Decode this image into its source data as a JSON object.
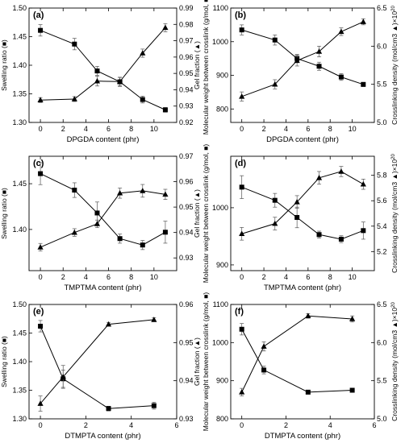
{
  "chart_data": [
    {
      "panel": "(a)",
      "type": "line",
      "x": [
        0,
        3,
        5,
        7,
        9,
        11
      ],
      "xlim": [
        -1,
        12
      ],
      "xticks": [
        0,
        2,
        4,
        6,
        8,
        10
      ],
      "xlabel": "DPGDA content (phr)",
      "left": {
        "label": "Swelling ratio (■)",
        "lim": [
          1.3,
          1.5
        ],
        "ticks": [
          "1.30",
          "1.35",
          "1.40",
          "1.45",
          "1.50"
        ],
        "tickvals": [
          1.3,
          1.35,
          1.4,
          1.45,
          1.5
        ]
      },
      "right": {
        "label": "Gel fraction (▲)",
        "lim": [
          0.92,
          0.99
        ],
        "ticks": [
          "0.92",
          "0.93",
          "0.94",
          "0.95",
          "0.96",
          "0.97",
          "0.98",
          "0.99"
        ],
        "tickvals": [
          0.92,
          0.93,
          0.94,
          0.95,
          0.96,
          0.97,
          0.98,
          0.99
        ]
      },
      "series": [
        {
          "axis": "left",
          "marker": "square",
          "values": [
            1.461,
            1.437,
            1.39,
            1.371,
            1.34,
            1.322
          ],
          "err": [
            0.01,
            0.01,
            0.008,
            0.008,
            0.006,
            0.004
          ]
        },
        {
          "axis": "right",
          "marker": "triangle",
          "values": [
            0.9337,
            0.9343,
            0.9453,
            0.945,
            0.9624,
            0.978
          ],
          "err": [
            0.0015,
            0.0015,
            0.003,
            0.0025,
            0.0025,
            0.0025
          ]
        }
      ]
    },
    {
      "panel": "(b)",
      "type": "line",
      "x": [
        0,
        3,
        5,
        7,
        9,
        11
      ],
      "xlim": [
        -1,
        12
      ],
      "xticks": [
        0,
        2,
        4,
        6,
        8,
        10
      ],
      "xlabel": "DPGDA content (phr)",
      "left": {
        "label": "Molecular weight between crosslink (g/mol, ■)",
        "lim": [
          760,
          1100
        ],
        "ticks": [
          "800",
          "900",
          "1000",
          "1100"
        ],
        "tickvals": [
          800,
          900,
          1000,
          1100
        ]
      },
      "right": {
        "label": "Crosslinking density (mol/cm3 ▲)×10",
        "exp": "20",
        "lim": [
          5.0,
          6.5
        ],
        "ticks": [
          "5.0",
          "5.5",
          "6.0",
          "6.5"
        ],
        "tickvals": [
          5.0,
          5.5,
          6.0,
          6.5
        ]
      },
      "series": [
        {
          "axis": "left",
          "marker": "square",
          "values": [
            1035,
            1005,
            950,
            927,
            895,
            873
          ],
          "err": [
            15,
            15,
            12,
            12,
            10,
            6
          ]
        },
        {
          "axis": "right",
          "marker": "triangle",
          "values": [
            5.34,
            5.5,
            5.81,
            5.93,
            6.19,
            6.32
          ],
          "err": [
            0.06,
            0.06,
            0.07,
            0.07,
            0.05,
            0.04
          ]
        }
      ]
    },
    {
      "panel": "(c)",
      "type": "line",
      "x": [
        0,
        3,
        5,
        7,
        9,
        11
      ],
      "xlim": [
        -1,
        12
      ],
      "xticks": [
        0,
        2,
        4,
        6,
        8,
        10
      ],
      "xlabel": "TMPTMA content (phr)",
      "left": {
        "label": "Swelling ratio (■)",
        "lim": [
          1.355,
          1.48
        ],
        "ticks": [
          "1.40",
          "1.45"
        ],
        "tickvals": [
          1.4,
          1.45
        ]
      },
      "right": {
        "label": "Gel fraction (▲)",
        "lim": [
          0.925,
          0.97
        ],
        "ticks": [
          "0.93",
          "0.94",
          "0.95",
          "0.96",
          "0.97"
        ],
        "tickvals": [
          0.93,
          0.94,
          0.95,
          0.96,
          0.97
        ]
      },
      "series": [
        {
          "axis": "left",
          "marker": "square",
          "values": [
            1.461,
            1.443,
            1.418,
            1.39,
            1.383,
            1.397
          ],
          "err": [
            0.012,
            0.008,
            0.012,
            0.005,
            0.005,
            0.012
          ]
        },
        {
          "axis": "right",
          "marker": "triangle",
          "values": [
            0.9342,
            0.94,
            0.9434,
            0.9555,
            0.9564,
            0.955
          ],
          "err": [
            0.0015,
            0.0015,
            0.0015,
            0.002,
            0.0025,
            0.002
          ]
        }
      ]
    },
    {
      "panel": "(d)",
      "type": "line",
      "x": [
        0,
        3,
        5,
        7,
        9,
        11
      ],
      "xlim": [
        -1,
        12
      ],
      "xticks": [
        0,
        2,
        4,
        6,
        8,
        10
      ],
      "xlabel": "TMPTMA content (phr)",
      "left": {
        "label": "Molecular weight between crosslink (g/mol, ■)",
        "lim": [
          890,
          1090
        ],
        "ticks": [
          "900",
          "1000"
        ],
        "tickvals": [
          900,
          1000
        ]
      },
      "right": {
        "label": "Crosslinking density (mol/cm3 ▲)×10",
        "exp": "20",
        "lim": [
          5.05,
          5.95
        ],
        "ticks": [
          "5.2",
          "5.4",
          "5.6",
          "5.8"
        ],
        "tickvals": [
          5.2,
          5.4,
          5.6,
          5.8
        ]
      },
      "series": [
        {
          "axis": "left",
          "marker": "square",
          "values": [
            1036,
            1013,
            983,
            953,
            945,
            960
          ],
          "err": [
            20,
            12,
            18,
            6,
            6,
            15
          ]
        },
        {
          "axis": "right",
          "marker": "triangle",
          "values": [
            5.34,
            5.42,
            5.59,
            5.78,
            5.83,
            5.73
          ],
          "err": [
            0.05,
            0.05,
            0.05,
            0.05,
            0.04,
            0.04
          ]
        }
      ]
    },
    {
      "panel": "(e)",
      "type": "line",
      "x": [
        0,
        1,
        3,
        5
      ],
      "xlim": [
        -0.5,
        6
      ],
      "xticks": [
        0,
        2,
        4,
        6
      ],
      "xlabel": "DTMPTA content (phr)",
      "left": {
        "label": "Swelling ratio (■)",
        "lim": [
          1.3,
          1.5
        ],
        "ticks": [
          "1.30",
          "1.35",
          "1.40",
          "1.45",
          "1.50"
        ],
        "tickvals": [
          1.3,
          1.35,
          1.4,
          1.45,
          1.5
        ]
      },
      "right": {
        "label": "Gel fraction (▲)",
        "lim": [
          0.93,
          0.96
        ],
        "ticks": [
          "0.93",
          "0.94",
          "0.95",
          "0.96"
        ],
        "tickvals": [
          0.93,
          0.94,
          0.95,
          0.96
        ]
      },
      "series": [
        {
          "axis": "left",
          "marker": "square",
          "values": [
            1.462,
            1.37,
            1.318,
            1.323
          ],
          "err": [
            0.01,
            0.015,
            0.004,
            0.006
          ]
        },
        {
          "axis": "right",
          "marker": "triangle",
          "values": [
            0.934,
            0.941,
            0.9548,
            0.956
          ],
          "err": [
            0.002,
            0.003,
            0.0005,
            0.0005
          ]
        }
      ]
    },
    {
      "panel": "(f)",
      "type": "line",
      "x": [
        0,
        1,
        3,
        5
      ],
      "xlim": [
        -0.5,
        6
      ],
      "xticks": [
        0,
        2,
        4,
        6
      ],
      "xlabel": "DTMPTA content (phr)",
      "left": {
        "label": "Molecular weight between crosslink (g/mol, ■)",
        "lim": [
          800,
          1100
        ],
        "ticks": [
          "800",
          "900",
          "1000",
          "1100"
        ],
        "tickvals": [
          800,
          900,
          1000,
          1100
        ]
      },
      "right": {
        "label": "Crosslinking density (mol/cm3 ▲)×10",
        "exp": "20",
        "lim": [
          5.0,
          6.5
        ],
        "ticks": [
          "5.0",
          "5.5",
          "6.0",
          "6.5"
        ],
        "tickvals": [
          5.0,
          5.5,
          6.0,
          6.5
        ]
      },
      "series": [
        {
          "axis": "left",
          "marker": "square",
          "values": [
            1035,
            928,
            870,
            875
          ],
          "err": [
            15,
            10,
            3,
            3
          ]
        },
        {
          "axis": "right",
          "marker": "triangle",
          "values": [
            5.35,
            5.95,
            6.35,
            6.31
          ],
          "err": [
            0.05,
            0.06,
            0.03,
            0.04
          ]
        }
      ]
    }
  ]
}
